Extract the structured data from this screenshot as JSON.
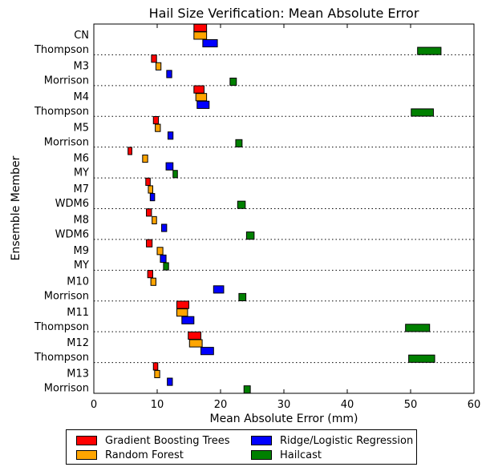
{
  "chart_data": {
    "type": "bar",
    "orientation": "horizontal",
    "title": "Hail Size Verification: Mean Absolute Error",
    "xlabel": "Mean Absolute Error (mm)",
    "ylabel": "Ensemble Member",
    "xlim": [
      0,
      60
    ],
    "xticks": [
      "0",
      "10",
      "20",
      "30",
      "40",
      "50",
      "60"
    ],
    "categories": [
      [
        "CN",
        "Thompson"
      ],
      [
        "M3",
        "Morrison"
      ],
      [
        "M4",
        "Thompson"
      ],
      [
        "M5",
        "Morrison"
      ],
      [
        "M6",
        "MY"
      ],
      [
        "M7",
        "WDM6"
      ],
      [
        "M8",
        "WDM6"
      ],
      [
        "M9",
        "MY"
      ],
      [
        "M10",
        "Morrison"
      ],
      [
        "M11",
        "Thompson"
      ],
      [
        "M12",
        "Thompson"
      ],
      [
        "M13",
        "Morrison"
      ]
    ],
    "series": [
      {
        "name": "Gradient Boosting Trees",
        "color": "#ff0000",
        "intervals": [
          [
            15.8,
            17.8
          ],
          [
            9.1,
            9.9
          ],
          [
            15.8,
            17.4
          ],
          [
            9.4,
            10.2
          ],
          [
            5.4,
            6.0
          ],
          [
            8.2,
            8.9
          ],
          [
            8.3,
            9.1
          ],
          [
            8.3,
            9.2
          ],
          [
            8.5,
            9.3
          ],
          [
            13.1,
            15.0
          ],
          [
            14.9,
            16.9
          ],
          [
            9.4,
            10.1
          ]
        ]
      },
      {
        "name": "Random Forest",
        "color": "#ffa500",
        "intervals": [
          [
            15.8,
            17.8
          ],
          [
            9.8,
            10.6
          ],
          [
            16.1,
            17.8
          ],
          [
            9.7,
            10.5
          ],
          [
            7.7,
            8.5
          ],
          [
            8.6,
            9.3
          ],
          [
            9.2,
            9.9
          ],
          [
            10.0,
            10.9
          ],
          [
            9.0,
            9.8
          ],
          [
            13.1,
            14.8
          ],
          [
            15.1,
            17.1
          ],
          [
            9.6,
            10.4
          ]
        ]
      },
      {
        "name": "Ridge/Logistic Regression",
        "color": "#0000ff",
        "intervals": [
          [
            17.2,
            19.5
          ],
          [
            11.5,
            12.3
          ],
          [
            16.3,
            18.2
          ],
          [
            11.7,
            12.5
          ],
          [
            11.4,
            12.5
          ],
          [
            8.9,
            9.6
          ],
          [
            10.7,
            11.5
          ],
          [
            10.5,
            11.4
          ],
          [
            18.9,
            20.5
          ],
          [
            13.9,
            15.8
          ],
          [
            16.9,
            18.9
          ],
          [
            11.6,
            12.4
          ]
        ]
      },
      {
        "name": "Hailcast",
        "color": "#008000",
        "intervals": [
          [
            51.1,
            54.8
          ],
          [
            21.5,
            22.5
          ],
          [
            50.1,
            53.6
          ],
          [
            22.4,
            23.4
          ],
          [
            12.5,
            13.2
          ],
          [
            22.7,
            23.9
          ],
          [
            24.1,
            25.3
          ],
          [
            11.0,
            11.8
          ],
          [
            22.9,
            24.0
          ],
          [
            49.2,
            53.0
          ],
          [
            49.7,
            53.8
          ],
          [
            23.7,
            24.7
          ]
        ]
      }
    ],
    "grid": "dotted separators between ensemble members",
    "legend_position": "below"
  }
}
